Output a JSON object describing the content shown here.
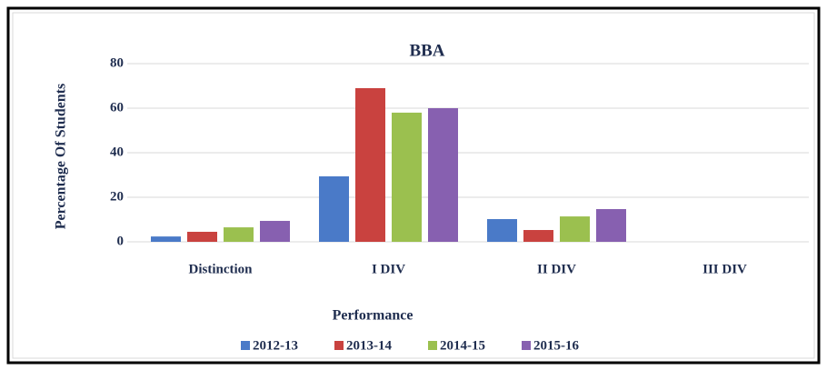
{
  "chart_data": {
    "type": "bar",
    "title": "BBA",
    "x_label": "Performance",
    "y_label": "Percentage Of Students",
    "categories": [
      "Distinction",
      "I DIV",
      "II DIV",
      "III DIV"
    ],
    "series": [
      {
        "name": "2012-13",
        "color": "#4a7ac8",
        "values": [
          2.4,
          29.4,
          10.2,
          0
        ]
      },
      {
        "name": "2013-14",
        "color": "#c9423f",
        "values": [
          4.5,
          69,
          5.3,
          0
        ]
      },
      {
        "name": "2014-15",
        "color": "#9bc04f",
        "values": [
          6.5,
          58,
          11.4,
          0
        ]
      },
      {
        "name": "2015-16",
        "color": "#8760b0",
        "values": [
          9.4,
          60,
          14.7,
          0
        ]
      }
    ],
    "ylim": [
      0,
      80
    ],
    "yticks": [
      0,
      20,
      40,
      60,
      80
    ],
    "grid": true,
    "legend": "bottom"
  }
}
